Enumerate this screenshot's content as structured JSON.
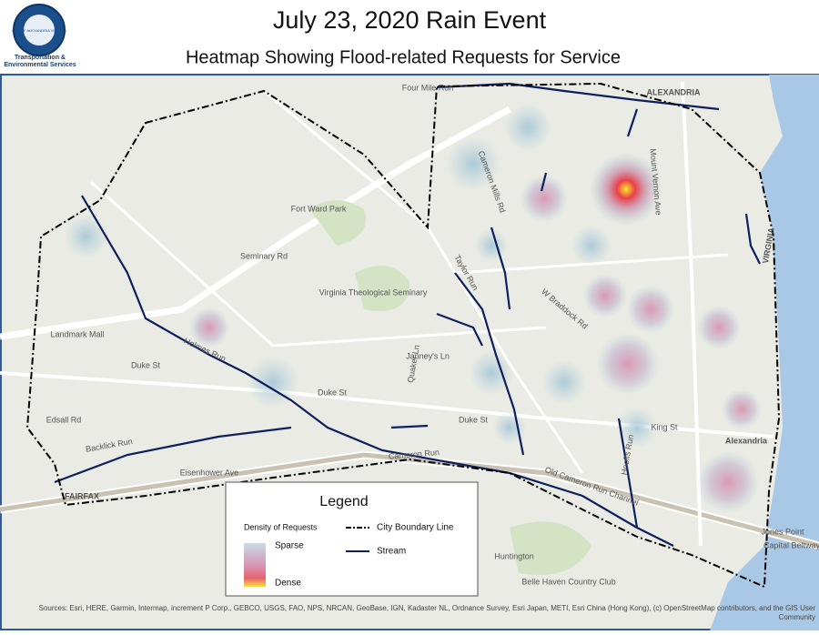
{
  "header": {
    "title": "July 23, 2020 Rain Event",
    "subtitle": "Heatmap Showing Flood-related Requests for Service",
    "logo": {
      "seal_text": "CITY OF ALEXANDRIA VIRGINIA",
      "department": "Transportation & Environmental Services"
    }
  },
  "map": {
    "labels": [
      "Four Mile Run",
      "Holmes Run",
      "Cameron Run",
      "Backlick Run",
      "Taylor Run",
      "Old Cameron Run Channel",
      "Hooffs Run",
      "Duke St",
      "Duke St",
      "Duke St",
      "King St",
      "Alexandria",
      "VIRGINIA",
      "Virginia Theological Seminary",
      "Landmark Mall",
      "Fort Ward Park",
      "Huntington",
      "Capital Beltway",
      "Seminary Rd",
      "Quaker Ln",
      "Janney's Ln",
      "Cameron Mills Rd",
      "Mount Vernon Ave",
      "W Braddock Rd",
      "Jones Point",
      "Belle Haven Country Club",
      "FAIRFAX",
      "ALEXANDRIA",
      "Eisenhower Ave",
      "Edsall Rd"
    ]
  },
  "legend": {
    "title": "Legend",
    "density_label": "Density of Requests",
    "sparse": "Sparse",
    "dense": "Dense",
    "boundary": "City Boundary Line",
    "stream": "Stream"
  },
  "sources": "Sources: Esri, HERE, Garmin, Intermap, increment P Corp., GEBCO, USGS, FAO, NPS, NRCAN, GeoBase, IGN, Kadaster NL, Ordnance Survey, Esri Japan, METI, Esri China (Hong Kong), (c) OpenStreetMap contributors, and the GIS User Community"
}
